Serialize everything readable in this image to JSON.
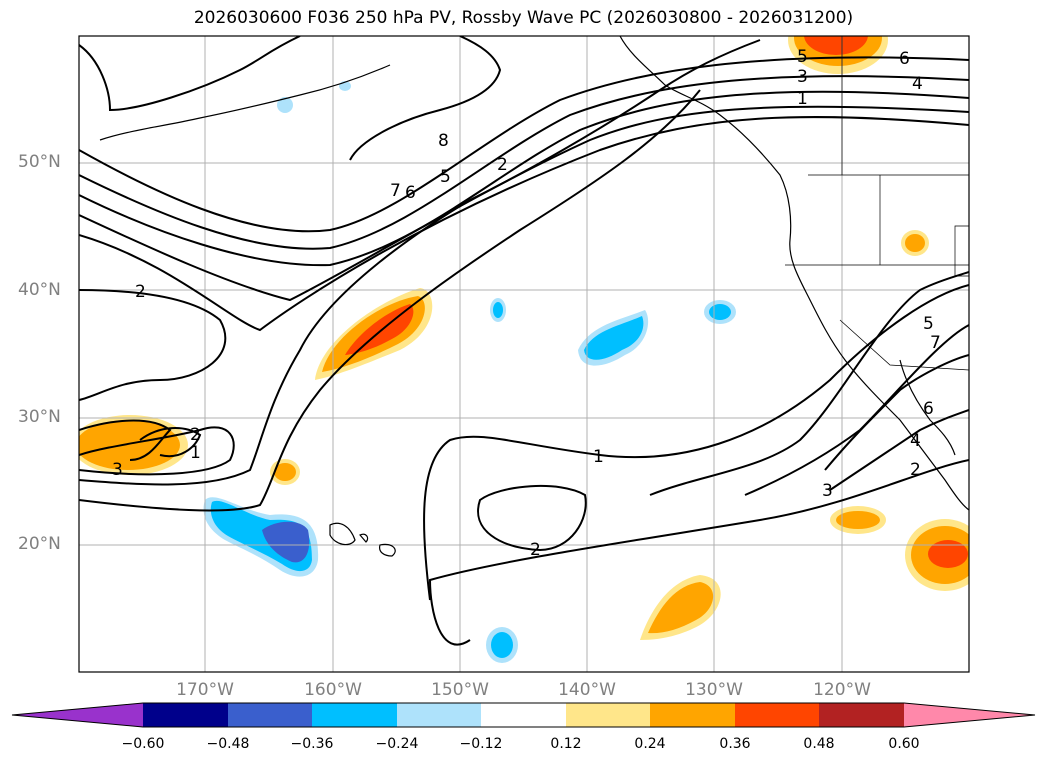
{
  "title": "2026030600 F036 250 hPa PV, Rossby Wave PC (2026030800 - 2026031200)",
  "lat_labels": [
    "50°N",
    "40°N",
    "30°N",
    "20°N"
  ],
  "lon_labels": [
    "170°W",
    "160°W",
    "150°W",
    "140°W",
    "130°W",
    "120°W"
  ],
  "contour_labels": [
    "8",
    "7",
    "6",
    "5",
    "2",
    "2",
    "5",
    "3",
    "6",
    "4",
    "1",
    "1",
    "2",
    "3",
    "5",
    "7",
    "6",
    "4",
    "2",
    "3",
    "2",
    "1"
  ],
  "colorbar": {
    "ticks": [
      "−0.60",
      "−0.48",
      "−0.36",
      "−0.24",
      "−0.12",
      "0.12",
      "0.24",
      "0.36",
      "0.48",
      "0.60"
    ],
    "colors": [
      "#9932cc",
      "#00008b",
      "#3a5fcd",
      "#00bfff",
      "#aee2fb",
      "#ffffff",
      "#ffe68a",
      "#ffa500",
      "#ff4500",
      "#b22222",
      "#ff88aa"
    ]
  }
}
